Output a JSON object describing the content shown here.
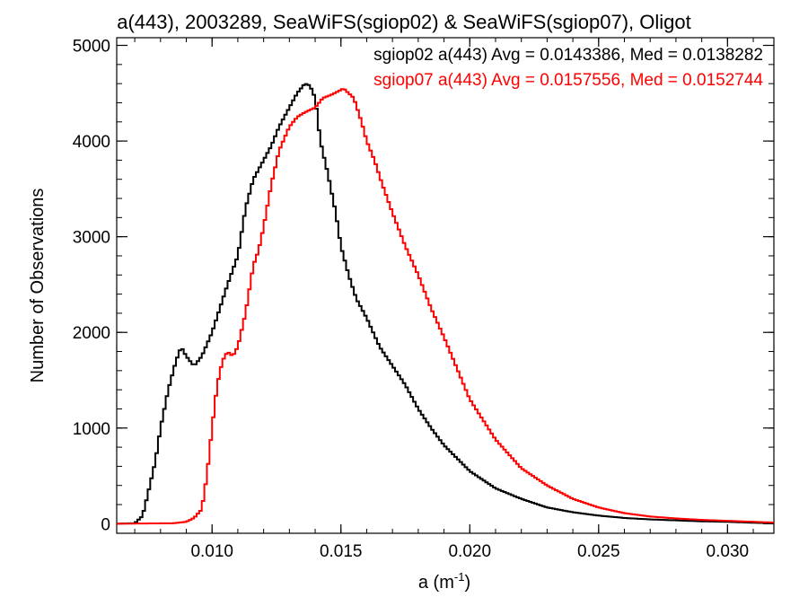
{
  "chart_data": {
    "type": "line",
    "title": "a(443), 2003289, SeaWiFS(sgiop02) & SeaWiFS(sgiop07), Oligot",
    "xlabel": "a (m",
    "xlabel_sup": "-1",
    "xlabel_close": ")",
    "ylabel": "Number of Observations",
    "xlim": [
      0.0063,
      0.0318
    ],
    "ylim": [
      -100,
      5080
    ],
    "x_ticks": [
      0.01,
      0.015,
      0.02,
      0.025,
      0.03
    ],
    "x_tick_labels": [
      "0.010",
      "0.015",
      "0.020",
      "0.025",
      "0.030"
    ],
    "y_ticks": [
      0,
      1000,
      2000,
      3000,
      4000,
      5000
    ],
    "y_tick_labels": [
      "0",
      "1000",
      "2000",
      "3000",
      "4000",
      "5000"
    ],
    "step": true,
    "legend_position": "top-right",
    "legend": [
      "sgiop02 a(443) Avg = 0.0143386, Med = 0.0138282",
      "sgiop07 a(443) Avg = 0.0157556, Med = 0.0152744"
    ],
    "series": [
      {
        "color": "#000000",
        "x": [
          0.0063,
          0.007,
          0.0073,
          0.0075,
          0.0078,
          0.008,
          0.0083,
          0.0086,
          0.0088,
          0.009,
          0.0093,
          0.0096,
          0.01,
          0.0103,
          0.0106,
          0.011,
          0.0113,
          0.0116,
          0.012,
          0.0123,
          0.0126,
          0.013,
          0.0133,
          0.0136,
          0.0138,
          0.014,
          0.0142,
          0.0145,
          0.0148,
          0.015,
          0.0153,
          0.0156,
          0.016,
          0.0165,
          0.017,
          0.0175,
          0.018,
          0.0185,
          0.019,
          0.02,
          0.021,
          0.022,
          0.023,
          0.024,
          0.025,
          0.026,
          0.027,
          0.028,
          0.029,
          0.03,
          0.031,
          0.0318
        ],
        "values": [
          0,
          5,
          80,
          300,
          650,
          1000,
          1400,
          1700,
          1850,
          1750,
          1650,
          1750,
          2000,
          2250,
          2500,
          2800,
          3300,
          3600,
          3800,
          3950,
          4150,
          4350,
          4500,
          4600,
          4580,
          4450,
          4000,
          3650,
          3250,
          2900,
          2600,
          2350,
          2150,
          1850,
          1650,
          1450,
          1200,
          1000,
          820,
          550,
          370,
          260,
          170,
          120,
          85,
          60,
          45,
          35,
          25,
          20,
          10,
          5
        ]
      },
      {
        "color": "#ff0000",
        "x": [
          0.0063,
          0.0085,
          0.009,
          0.0093,
          0.0096,
          0.0098,
          0.01,
          0.0102,
          0.0104,
          0.0106,
          0.0108,
          0.011,
          0.0113,
          0.0116,
          0.0118,
          0.012,
          0.0123,
          0.0126,
          0.013,
          0.0133,
          0.0136,
          0.014,
          0.0143,
          0.0146,
          0.0149,
          0.0151,
          0.0153,
          0.0155,
          0.0158,
          0.016,
          0.0163,
          0.0166,
          0.017,
          0.0175,
          0.018,
          0.0185,
          0.019,
          0.02,
          0.021,
          0.022,
          0.023,
          0.024,
          0.025,
          0.026,
          0.027,
          0.028,
          0.029,
          0.03,
          0.031,
          0.0318
        ],
        "values": [
          0,
          5,
          20,
          60,
          150,
          500,
          1000,
          1450,
          1700,
          1800,
          1750,
          1850,
          2200,
          2700,
          2850,
          3100,
          3550,
          3900,
          4150,
          4250,
          4300,
          4350,
          4450,
          4480,
          4520,
          4550,
          4500,
          4450,
          4200,
          4000,
          3800,
          3550,
          3250,
          2900,
          2600,
          2250,
          1950,
          1300,
          880,
          580,
          400,
          260,
          170,
          110,
          75,
          55,
          40,
          30,
          20,
          12
        ]
      }
    ]
  }
}
